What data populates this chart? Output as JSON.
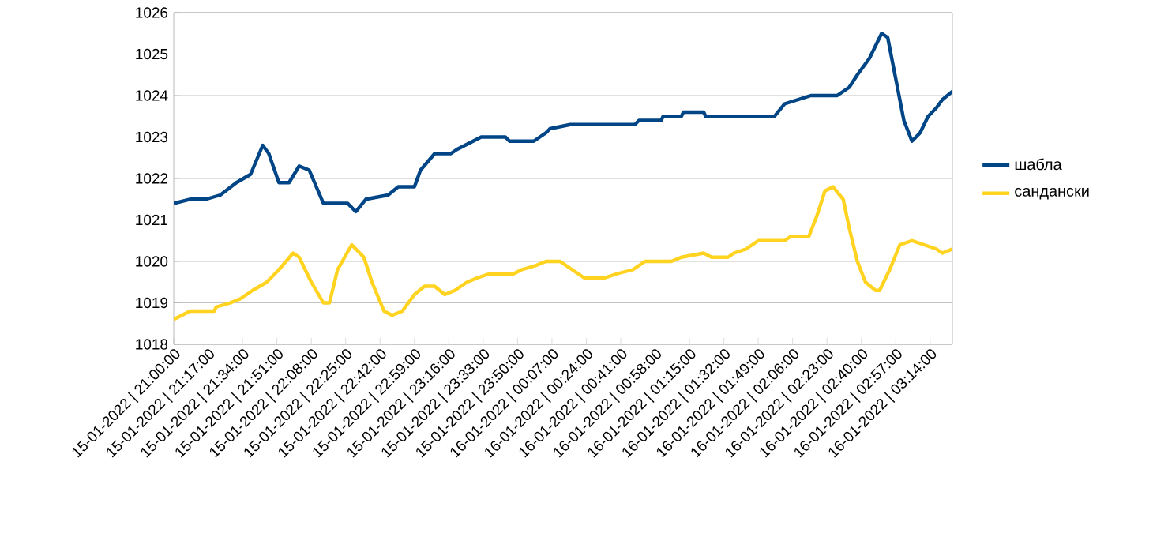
{
  "chart_data": {
    "type": "line",
    "grid": "y",
    "legend": "right",
    "marker": "none",
    "line_style": "solid",
    "xlim": [
      "2022-01-15T21:00",
      "2022-01-16T03:25"
    ],
    "ylim": [
      1018,
      1026
    ],
    "yticks": [
      1018,
      1019,
      1020,
      1021,
      1022,
      1023,
      1024,
      1025,
      1026
    ],
    "xticks": [
      {
        "value": "2022-01-15T21:00",
        "label": "15-01-2022 | 21:00:00"
      },
      {
        "value": "2022-01-15T21:17",
        "label": "15-01-2022 | 21:17:00"
      },
      {
        "value": "2022-01-15T21:34",
        "label": "15-01-2022 | 21:34:00"
      },
      {
        "value": "2022-01-15T21:51",
        "label": "15-01-2022 | 21:51:00"
      },
      {
        "value": "2022-01-15T22:08",
        "label": "15-01-2022 | 22:08:00"
      },
      {
        "value": "2022-01-15T22:25",
        "label": "15-01-2022 | 22:25:00"
      },
      {
        "value": "2022-01-15T22:42",
        "label": "15-01-2022 | 22:42:00"
      },
      {
        "value": "2022-01-15T22:59",
        "label": "15-01-2022 | 22:59:00"
      },
      {
        "value": "2022-01-15T23:16",
        "label": "15-01-2022 | 23:16:00"
      },
      {
        "value": "2022-01-15T23:33",
        "label": "15-01-2022 | 23:33:00"
      },
      {
        "value": "2022-01-15T23:50",
        "label": "15-01-2022 | 23:50:00"
      },
      {
        "value": "2022-01-16T00:07",
        "label": "16-01-2022 | 00:07:00"
      },
      {
        "value": "2022-01-16T00:24",
        "label": "16-01-2022 | 00:24:00"
      },
      {
        "value": "2022-01-16T00:41",
        "label": "16-01-2022 | 00:41:00"
      },
      {
        "value": "2022-01-16T00:58",
        "label": "16-01-2022 | 00:58:00"
      },
      {
        "value": "2022-01-16T01:15",
        "label": "16-01-2022 | 01:15:00"
      },
      {
        "value": "2022-01-16T01:32",
        "label": "16-01-2022 | 01:32:00"
      },
      {
        "value": "2022-01-16T01:49",
        "label": "16-01-2022 | 01:49:00"
      },
      {
        "value": "2022-01-16T02:06",
        "label": "16-01-2022 | 02:06:00"
      },
      {
        "value": "2022-01-16T02:23",
        "label": "16-01-2022 | 02:23:00"
      },
      {
        "value": "2022-01-16T02:40",
        "label": "16-01-2022 | 02:40:00"
      },
      {
        "value": "2022-01-16T02:57",
        "label": "16-01-2022 | 02:57:00"
      },
      {
        "value": "2022-01-16T03:14",
        "label": "16-01-2022 | 03:14:00"
      }
    ],
    "series": [
      {
        "name": "шабла",
        "color": "#004586",
        "x": [
          "2022-01-15T21:00",
          "2022-01-15T21:08",
          "2022-01-15T21:16",
          "2022-01-15T21:23",
          "2022-01-15T21:31",
          "2022-01-15T21:38",
          "2022-01-15T21:44",
          "2022-01-15T21:47",
          "2022-01-15T21:52",
          "2022-01-15T21:57",
          "2022-01-15T22:02",
          "2022-01-15T22:07",
          "2022-01-15T22:14",
          "2022-01-15T22:26",
          "2022-01-15T22:30",
          "2022-01-15T22:35",
          "2022-01-15T22:46",
          "2022-01-15T22:51",
          "2022-01-15T22:59",
          "2022-01-15T23:02",
          "2022-01-15T23:09",
          "2022-01-15T23:17",
          "2022-01-15T23:20",
          "2022-01-15T23:28",
          "2022-01-15T23:32",
          "2022-01-15T23:44",
          "2022-01-15T23:46",
          "2022-01-15T23:58",
          "2022-01-16T00:04",
          "2022-01-16T00:06",
          "2022-01-16T00:16",
          "2022-01-16T00:17",
          "2022-01-16T00:48",
          "2022-01-16T00:50",
          "2022-01-16T01:01",
          "2022-01-16T01:02",
          "2022-01-16T01:11",
          "2022-01-16T01:12",
          "2022-01-16T01:22",
          "2022-01-16T01:23",
          "2022-01-16T01:57",
          "2022-01-16T02:02",
          "2022-01-16T02:15",
          "2022-01-16T02:28",
          "2022-01-16T02:34",
          "2022-01-16T02:38",
          "2022-01-16T02:44",
          "2022-01-16T02:50",
          "2022-01-16T02:53",
          "2022-01-16T02:57",
          "2022-01-16T03:01",
          "2022-01-16T03:05",
          "2022-01-16T03:09",
          "2022-01-16T03:13",
          "2022-01-16T03:17",
          "2022-01-16T03:20",
          "2022-01-16T03:25"
        ],
        "values": [
          1021.4,
          1021.5,
          1021.5,
          1021.6,
          1021.9,
          1022.1,
          1022.8,
          1022.6,
          1021.9,
          1021.9,
          1022.3,
          1022.2,
          1021.4,
          1021.4,
          1021.2,
          1021.5,
          1021.6,
          1021.8,
          1021.8,
          1022.2,
          1022.6,
          1022.6,
          1022.7,
          1022.9,
          1023.0,
          1023.0,
          1022.9,
          1022.9,
          1023.1,
          1023.2,
          1023.3,
          1023.3,
          1023.3,
          1023.4,
          1023.4,
          1023.5,
          1023.5,
          1023.6,
          1023.6,
          1023.5,
          1023.5,
          1023.8,
          1024.0,
          1024.0,
          1024.2,
          1024.5,
          1024.9,
          1025.5,
          1025.4,
          1024.4,
          1023.4,
          1022.9,
          1023.1,
          1023.5,
          1023.7,
          1023.9,
          1024.1
        ]
      },
      {
        "name": "сандански",
        "color": "#ffd320",
        "x": [
          "2022-01-15T21:00",
          "2022-01-15T21:04",
          "2022-01-15T21:08",
          "2022-01-15T21:20",
          "2022-01-15T21:21",
          "2022-01-15T21:28",
          "2022-01-15T21:33",
          "2022-01-15T21:39",
          "2022-01-15T21:46",
          "2022-01-15T21:52",
          "2022-01-15T21:59",
          "2022-01-15T22:02",
          "2022-01-15T22:08",
          "2022-01-15T22:14",
          "2022-01-15T22:17",
          "2022-01-15T22:21",
          "2022-01-15T22:28",
          "2022-01-15T22:34",
          "2022-01-15T22:38",
          "2022-01-15T22:44",
          "2022-01-15T22:48",
          "2022-01-15T22:53",
          "2022-01-15T22:59",
          "2022-01-15T23:04",
          "2022-01-15T23:09",
          "2022-01-15T23:14",
          "2022-01-15T23:19",
          "2022-01-15T23:25",
          "2022-01-15T23:30",
          "2022-01-15T23:36",
          "2022-01-15T23:48",
          "2022-01-15T23:52",
          "2022-01-15T23:59",
          "2022-01-16T00:04",
          "2022-01-16T00:11",
          "2022-01-16T00:17",
          "2022-01-16T00:23",
          "2022-01-16T00:33",
          "2022-01-16T00:39",
          "2022-01-16T00:47",
          "2022-01-16T00:53",
          "2022-01-16T01:06",
          "2022-01-16T01:11",
          "2022-01-16T01:22",
          "2022-01-16T01:26",
          "2022-01-16T01:34",
          "2022-01-16T01:37",
          "2022-01-16T01:43",
          "2022-01-16T01:49",
          "2022-01-16T02:02",
          "2022-01-16T02:05",
          "2022-01-16T02:14",
          "2022-01-16T02:18",
          "2022-01-16T02:22",
          "2022-01-16T02:26",
          "2022-01-16T02:31",
          "2022-01-16T02:34",
          "2022-01-16T02:38",
          "2022-01-16T02:42",
          "2022-01-16T02:47",
          "2022-01-16T02:49",
          "2022-01-16T02:54",
          "2022-01-16T02:59",
          "2022-01-16T03:05",
          "2022-01-16T03:11",
          "2022-01-16T03:17",
          "2022-01-16T03:20",
          "2022-01-16T03:25"
        ],
        "values": [
          1018.6,
          1018.7,
          1018.8,
          1018.8,
          1018.9,
          1019.0,
          1019.1,
          1019.3,
          1019.5,
          1019.8,
          1020.2,
          1020.1,
          1019.5,
          1019.0,
          1019.0,
          1019.8,
          1020.4,
          1020.1,
          1019.5,
          1018.8,
          1018.7,
          1018.8,
          1019.2,
          1019.4,
          1019.4,
          1019.2,
          1019.3,
          1019.5,
          1019.6,
          1019.7,
          1019.7,
          1019.8,
          1019.9,
          1020.0,
          1020.0,
          1019.8,
          1019.6,
          1019.6,
          1019.7,
          1019.8,
          1020.0,
          1020.0,
          1020.1,
          1020.2,
          1020.1,
          1020.1,
          1020.2,
          1020.3,
          1020.5,
          1020.5,
          1020.6,
          1020.6,
          1021.1,
          1021.7,
          1021.8,
          1021.5,
          1020.8,
          1020.0,
          1019.5,
          1019.3,
          1019.3,
          1019.8,
          1020.4,
          1020.5,
          1020.4,
          1020.3,
          1020.2,
          1020.3
        ]
      }
    ]
  }
}
